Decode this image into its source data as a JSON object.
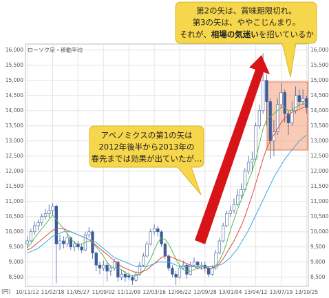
{
  "chart_data": {
    "type": "candlestick",
    "legend_label": "ローソク足・移動平均",
    "unit_label": "(円)",
    "categories": [
      "10/11/12",
      null,
      null,
      null,
      null,
      null,
      null,
      "11/02/18",
      null,
      null,
      null,
      null,
      null,
      null,
      "11/05/27",
      null,
      null,
      null,
      null,
      null,
      null,
      "11/09/02",
      null,
      null,
      null,
      null,
      null,
      null,
      "11/12/09",
      null,
      null,
      null,
      null,
      null,
      null,
      "12/03/16",
      null,
      null,
      null,
      null,
      null,
      null,
      "12/06/22",
      null,
      null,
      null,
      null,
      null,
      null,
      "12/09/28",
      null,
      null,
      null,
      null,
      null,
      null,
      "13/01/04",
      null,
      null,
      null,
      null,
      null,
      null,
      "13/04/12",
      null,
      null,
      null,
      null,
      null,
      null,
      "13/07/19",
      null,
      null,
      null,
      null,
      null,
      null,
      "13/10/25"
    ],
    "open": [
      9600,
      9700,
      10000,
      10200,
      10300,
      10500,
      10600,
      10700,
      10850,
      9600,
      9700,
      9600,
      9800,
      9500,
      9600,
      9500,
      9400,
      9900,
      10000,
      9300,
      8900,
      8800,
      8900,
      8700,
      8800,
      9000,
      8500,
      8600,
      8550,
      8500,
      8400,
      8600,
      8900,
      9200,
      9600,
      10000,
      10100,
      10000,
      9600,
      9200,
      8800,
      8600,
      8500,
      8800,
      8900,
      8600,
      8900,
      9000,
      8850,
      8900,
      8800,
      8600,
      8800,
      9300,
      9700,
      10200,
      10600,
      10700,
      10900,
      11200,
      11400,
      12000,
      12300,
      12400,
      13500,
      14000,
      15000,
      14300,
      13000,
      13300,
      14200,
      14600,
      13900,
      13600,
      14000,
      14500,
      14300,
      14400
    ],
    "high": [
      9850,
      10100,
      10350,
      10400,
      10600,
      10750,
      10900,
      10950,
      10900,
      9900,
      9850,
      9950,
      9850,
      9700,
      9700,
      9600,
      10000,
      10150,
      10050,
      9350,
      9000,
      9050,
      9000,
      8900,
      9100,
      9050,
      8750,
      8700,
      8650,
      8550,
      8700,
      9000,
      9300,
      9700,
      10100,
      10250,
      10200,
      10050,
      9650,
      9250,
      8900,
      8700,
      8900,
      9050,
      8950,
      9000,
      9150,
      9050,
      9000,
      9000,
      8850,
      8900,
      9400,
      9800,
      10300,
      10700,
      10850,
      11100,
      11400,
      11600,
      12100,
      12500,
      12650,
      13600,
      14200,
      15900,
      15200,
      14400,
      13700,
      14400,
      14900,
      14700,
      14000,
      14300,
      14800,
      14700,
      14700,
      14500
    ],
    "low": [
      9450,
      9650,
      9900,
      10050,
      10200,
      10400,
      10450,
      10550,
      8300,
      9400,
      9450,
      9500,
      9400,
      9350,
      9400,
      9300,
      9350,
      9800,
      9100,
      8700,
      8600,
      8700,
      8350,
      8550,
      8700,
      8350,
      8400,
      8350,
      8400,
      8250,
      8350,
      8550,
      8850,
      9150,
      9550,
      9900,
      9850,
      9500,
      9100,
      8700,
      8500,
      8250,
      8450,
      8750,
      8450,
      8550,
      8850,
      8750,
      8750,
      8650,
      8500,
      8550,
      8750,
      9250,
      9650,
      10150,
      10500,
      10600,
      10850,
      11100,
      11350,
      11900,
      12000,
      12350,
      13400,
      13900,
      13500,
      12400,
      12500,
      13200,
      14100,
      13600,
      13200,
      13500,
      13900,
      14100,
      14200,
      13900
    ],
    "close": [
      9700,
      10000,
      10200,
      10300,
      10500,
      10600,
      10700,
      10850,
      9600,
      9700,
      9600,
      9800,
      9500,
      9600,
      9500,
      9400,
      9900,
      10000,
      9300,
      8900,
      8800,
      8900,
      8700,
      8800,
      9000,
      8500,
      8600,
      8500,
      8500,
      8400,
      8600,
      8900,
      9200,
      9600,
      10000,
      10100,
      10000,
      9600,
      9200,
      8800,
      8600,
      8500,
      8800,
      8900,
      8600,
      8900,
      9000,
      8900,
      8900,
      8800,
      8600,
      8800,
      9300,
      9700,
      10200,
      10600,
      10700,
      10900,
      11200,
      11400,
      12000,
      12300,
      12400,
      13500,
      14000,
      15000,
      14300,
      13000,
      13300,
      14200,
      14600,
      13900,
      13600,
      14000,
      14500,
      14300,
      14400,
      14100
    ],
    "up_color": "#ffffff",
    "down_color": "#3b5b9b",
    "edge_color": "#3b5b9b",
    "series": [
      {
        "color": "#55b84a",
        "values": [
          9500,
          9600,
          9800,
          9950,
          10100,
          10250,
          10400,
          10550,
          10400,
          10250,
          10100,
          9950,
          9750,
          9650,
          9600,
          9600,
          9650,
          9700,
          9650,
          9500,
          9350,
          9200,
          9000,
          8850,
          8800,
          8800,
          8750,
          8650,
          8600,
          8550,
          8550,
          8600,
          8700,
          8900,
          9100,
          9400,
          9650,
          9800,
          9750,
          9600,
          9350,
          9100,
          8900,
          8750,
          8700,
          8700,
          8750,
          8800,
          8850,
          8850,
          8800,
          8800,
          8900,
          9050,
          9300,
          9650,
          10050,
          10400,
          10750,
          11050,
          11350,
          11700,
          12000,
          12400,
          12900,
          13400,
          13700,
          13800,
          13900,
          14000,
          14100,
          14100,
          14000,
          14000,
          14100,
          14200,
          14200,
          14250
        ]
      },
      {
        "color": "#e0483a",
        "values": [
          9400,
          9450,
          9550,
          9650,
          9750,
          9850,
          9950,
          10050,
          10100,
          10100,
          10100,
          10050,
          10000,
          9950,
          9900,
          9850,
          9800,
          9750,
          9650,
          9550,
          9450,
          9350,
          9250,
          9150,
          9050,
          8950,
          8850,
          8800,
          8750,
          8700,
          8650,
          8650,
          8700,
          8750,
          8850,
          8950,
          9050,
          9150,
          9200,
          9200,
          9150,
          9100,
          9050,
          9000,
          8950,
          8900,
          8850,
          8800,
          8800,
          8800,
          8800,
          8800,
          8850,
          8950,
          9100,
          9300,
          9500,
          9700,
          9950,
          10200,
          10500,
          10850,
          11200,
          11600,
          12000,
          12400,
          12750,
          13000,
          13200,
          13400,
          13600,
          13750,
          13850,
          13950,
          14000,
          14050,
          14100,
          14150
        ]
      },
      {
        "color": "#3aa6dd",
        "values": [
          9300,
          9350,
          9400,
          9450,
          9550,
          9650,
          9750,
          9850,
          9900,
          9950,
          10000,
          10000,
          10000,
          9950,
          9900,
          9850,
          9800,
          9750,
          9700,
          9650,
          9550,
          9450,
          9350,
          9250,
          9150,
          9100,
          9050,
          9000,
          8950,
          8900,
          8850,
          8850,
          8850,
          8850,
          8900,
          8950,
          9000,
          9000,
          9000,
          9000,
          8950,
          8900,
          8850,
          8850,
          8850,
          8850,
          8850,
          8850,
          8850,
          8850,
          8850,
          8850,
          8850,
          8900,
          8950,
          9050,
          9150,
          9300,
          9450,
          9650,
          9850,
          10050,
          10300,
          10550,
          10800,
          11050,
          11300,
          11550,
          11800,
          12000,
          12200,
          12400,
          12550,
          12700,
          12850,
          13000,
          13100,
          13200
        ]
      }
    ],
    "ylim": [
      8200,
      16200
    ],
    "yticks": [
      {
        "value": 8500,
        "label": "8,500"
      },
      {
        "value": 9000,
        "label": "9,000"
      },
      {
        "value": 9500,
        "label": "9,500"
      },
      {
        "value": 10000,
        "label": "10,000"
      },
      {
        "value": 10500,
        "label": "10,500"
      },
      {
        "value": 11000,
        "label": "11,000"
      },
      {
        "value": 11500,
        "label": "11,500"
      },
      {
        "value": 12000,
        "label": "12,000"
      },
      {
        "value": 12500,
        "label": "12,500"
      },
      {
        "value": 13000,
        "label": "13,000"
      },
      {
        "value": 13500,
        "label": "13,500"
      },
      {
        "value": 14000,
        "label": "14,000"
      },
      {
        "value": 14500,
        "label": "14,500"
      },
      {
        "value": 15000,
        "label": "15,000"
      },
      {
        "value": 15500,
        "label": "15,500"
      },
      {
        "value": 16000,
        "label": "16,000"
      }
    ],
    "annotations": {
      "top": [
        "第2の矢は、賞味期限切れ。",
        "第3の矢は、ややこじんまり。",
        "それが、",
        "相場の気迷い",
        "を招いているか"
      ],
      "middle": [
        "アベノミクスの第1の矢は",
        "2012年後半から2013年の",
        "春先までは効果が出ていたが…"
      ]
    }
  }
}
